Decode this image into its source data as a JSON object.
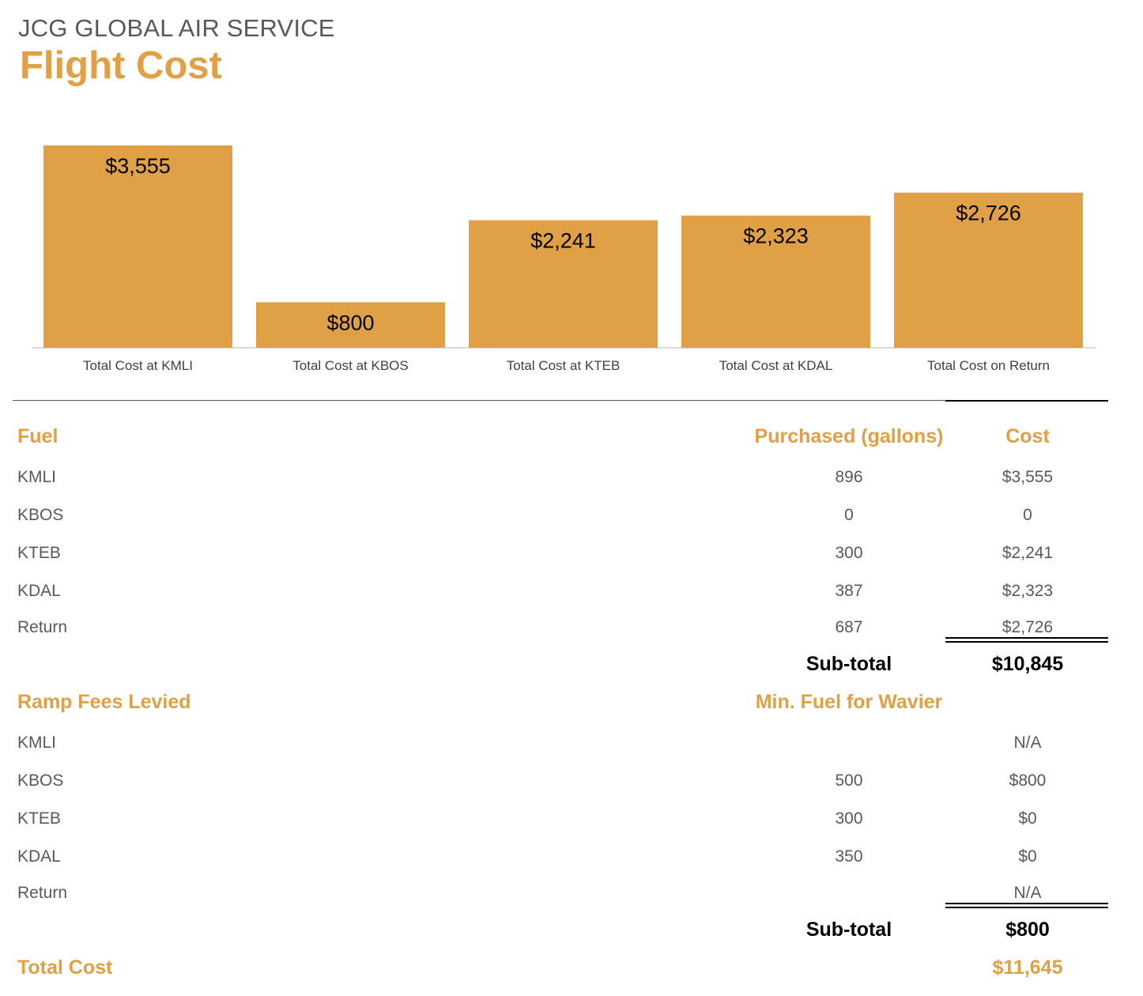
{
  "header": {
    "company": "JCG GLOBAL AIR SERVICE",
    "title": "Flight Cost"
  },
  "colors": {
    "accent": "#E0A045",
    "text": "#595959",
    "axis": "#D9D9D9"
  },
  "chart_data": {
    "type": "bar",
    "title": "",
    "xlabel": "",
    "ylabel": "",
    "categories": [
      "Total Cost at KMLI",
      "Total Cost at KBOS",
      "Total Cost at KTEB",
      "Total Cost at KDAL",
      "Total Cost on Return"
    ],
    "values": [
      3555,
      800,
      2241,
      2323,
      2726
    ],
    "value_labels": [
      "$3,555",
      "$800",
      "$2,241",
      "$2,323",
      "$2,726"
    ],
    "ylim": [
      0,
      3555
    ],
    "grid": false,
    "legend": "none"
  },
  "fuel": {
    "heading": "Fuel",
    "col_purchased": "Purchased (gallons)",
    "col_cost": "Cost",
    "rows": [
      {
        "label": "KMLI",
        "gallons": "896",
        "cost": "$3,555"
      },
      {
        "label": "KBOS",
        "gallons": "0",
        "cost": "0"
      },
      {
        "label": "KTEB",
        "gallons": "300",
        "cost": "$2,241"
      },
      {
        "label": "KDAL",
        "gallons": "387",
        "cost": "$2,323"
      },
      {
        "label": "Return",
        "gallons": "687",
        "cost": "$2,726"
      }
    ],
    "subtotal_label": "Sub-total",
    "subtotal_value": "$10,845"
  },
  "ramp": {
    "heading": "Ramp Fees Levied",
    "col_min_fuel": "Min. Fuel for Wavier",
    "rows": [
      {
        "label": "KMLI",
        "min_fuel": "",
        "cost": "N/A"
      },
      {
        "label": "KBOS",
        "min_fuel": "500",
        "cost": "$800"
      },
      {
        "label": "KTEB",
        "min_fuel": "300",
        "cost": "$0"
      },
      {
        "label": "KDAL",
        "min_fuel": "350",
        "cost": "$0"
      },
      {
        "label": "Return",
        "min_fuel": "",
        "cost": "N/A"
      }
    ],
    "subtotal_label": "Sub-total",
    "subtotal_value": "$800"
  },
  "total": {
    "label": "Total Cost",
    "value": "$11,645"
  }
}
